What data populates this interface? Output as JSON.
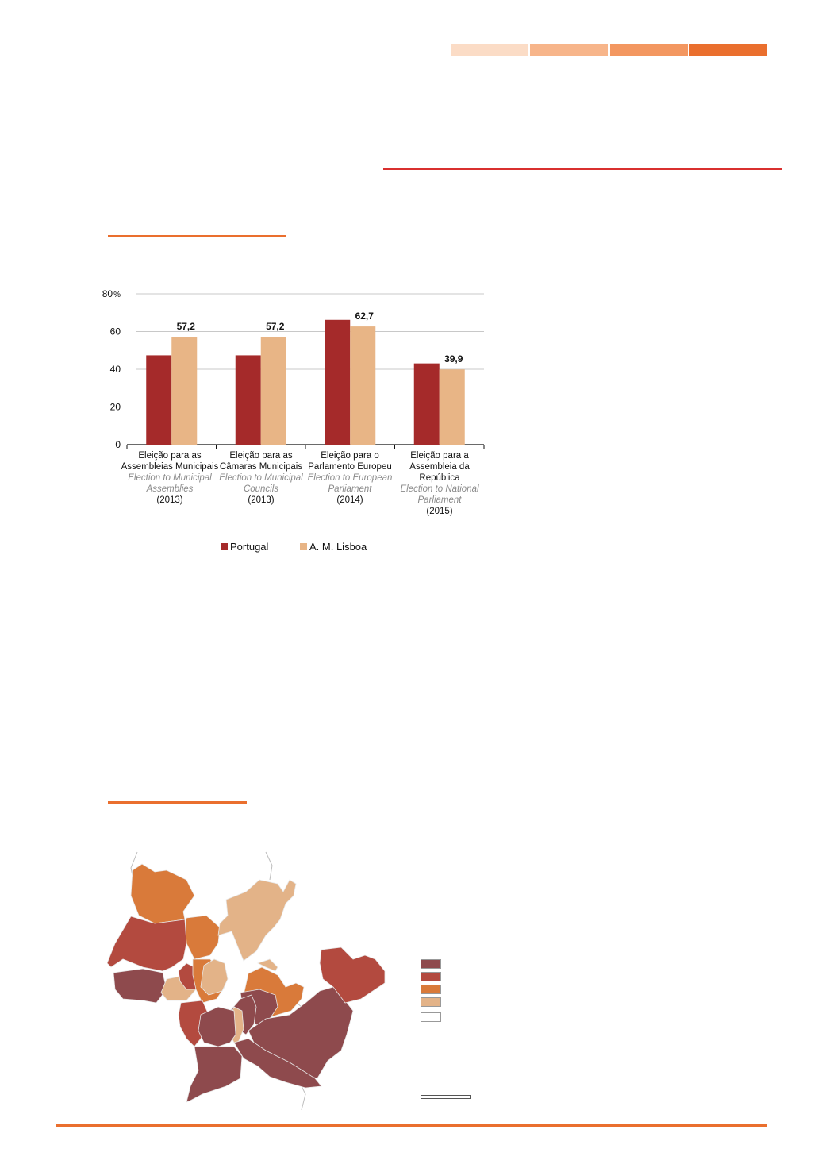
{
  "header": {
    "strip_colors": [
      "#fbdcc6",
      "#f7b58a",
      "#f39760",
      "#ea6f2e"
    ],
    "rule_color": "#d9302f"
  },
  "section_rule_color": "#ea6f2e",
  "chart_data": {
    "type": "bar",
    "categories": [
      {
        "pt": "Eleição para as Assembleias Municipais",
        "en": "Election to Municipal Assemblies",
        "year": "(2013)"
      },
      {
        "pt": "Eleição para as Câmaras Municipais",
        "en": "Election to Municipal Councils",
        "year": "(2013)"
      },
      {
        "pt": "Eleição para o Parlamento Europeu",
        "en": "Election to European Parliament",
        "year": "(2014)"
      },
      {
        "pt": "Eleição para a Assembleia da República",
        "en": "Election to National Parliament",
        "year": "(2015)"
      }
    ],
    "series": [
      {
        "name": "Portugal",
        "color": "#a52a2a",
        "values": [
          47.4,
          47.4,
          66.2,
          43.1
        ]
      },
      {
        "name": "A. M. Lisboa",
        "color": "#e8b586",
        "values": [
          57.2,
          57.2,
          62.7,
          39.9
        ]
      }
    ],
    "data_labels": [
      "57,2",
      "57,2",
      "62,7",
      "39,9"
    ],
    "yticks": [
      "0",
      "20",
      "40",
      "60",
      "80"
    ],
    "y_unit": "%",
    "ylim": [
      0,
      80
    ],
    "grid": true,
    "legend_position": "bottom"
  },
  "map": {
    "legend_colors": [
      "#8e4a4d",
      "#b34a3f",
      "#d97a3a",
      "#e3b388",
      "#ffffff"
    ]
  }
}
